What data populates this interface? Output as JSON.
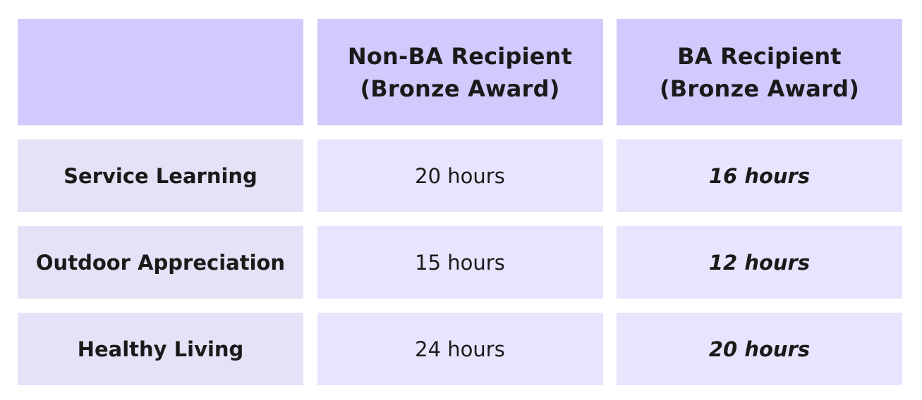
{
  "table": {
    "headers": [
      {
        "line1": "",
        "line2": ""
      },
      {
        "line1": "Non-BA Recipient",
        "line2": "(Bronze Award)"
      },
      {
        "line1": "BA Recipient",
        "line2": "(Bronze Award)"
      }
    ],
    "rows": [
      {
        "label": "Service Learning",
        "non_ba": "20 hours",
        "ba": "16 hours"
      },
      {
        "label": "Outdoor Appreciation",
        "non_ba": "15 hours",
        "ba": "12 hours"
      },
      {
        "label": "Healthy Living",
        "non_ba": "24 hours",
        "ba": "20 hours"
      }
    ]
  },
  "colors": {
    "header_bg": "#d2cafd",
    "row_label_bg": "#e5e2f7",
    "value_bg": "#e8e4fd",
    "text": "#1a1a1a"
  }
}
